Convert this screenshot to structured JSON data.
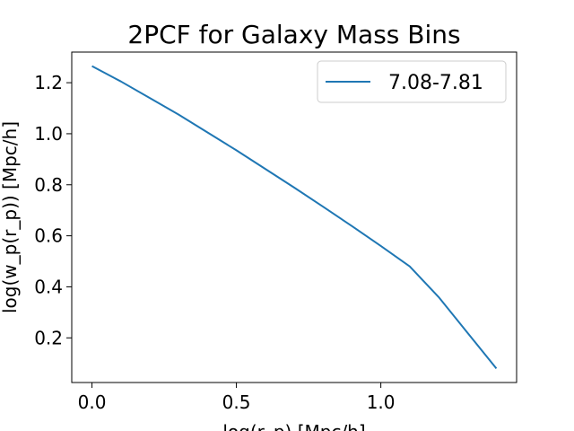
{
  "chart_data": {
    "type": "line",
    "title": "2PCF for Galaxy Mass Bins",
    "xlabel": "log(r_p) [Mpc/h]",
    "ylabel": "log(w_p(r_p)) [Mpc/h]",
    "xlim": [
      -0.07,
      1.47
    ],
    "ylim": [
      0.025,
      1.32
    ],
    "xticks": [
      0.0,
      0.5,
      1.0
    ],
    "xtick_labels": [
      "0.0",
      "0.5",
      "1.0"
    ],
    "yticks": [
      0.2,
      0.4,
      0.6,
      0.8,
      1.0,
      1.2
    ],
    "ytick_labels": [
      "0.2",
      "0.4",
      "0.6",
      "0.8",
      "1.0",
      "1.2"
    ],
    "grid": false,
    "legend_position": "top-right",
    "series": [
      {
        "name": "7.08-7.81",
        "color": "#1f77b4",
        "x": [
          0.0,
          0.1,
          0.2,
          0.3,
          0.4,
          0.5,
          0.6,
          0.7,
          0.8,
          0.9,
          1.0,
          1.1,
          1.2,
          1.3,
          1.4
        ],
        "y": [
          1.265,
          1.205,
          1.14,
          1.075,
          1.005,
          0.935,
          0.862,
          0.789,
          0.714,
          0.638,
          0.56,
          0.48,
          0.36,
          0.22,
          0.08
        ]
      }
    ]
  }
}
